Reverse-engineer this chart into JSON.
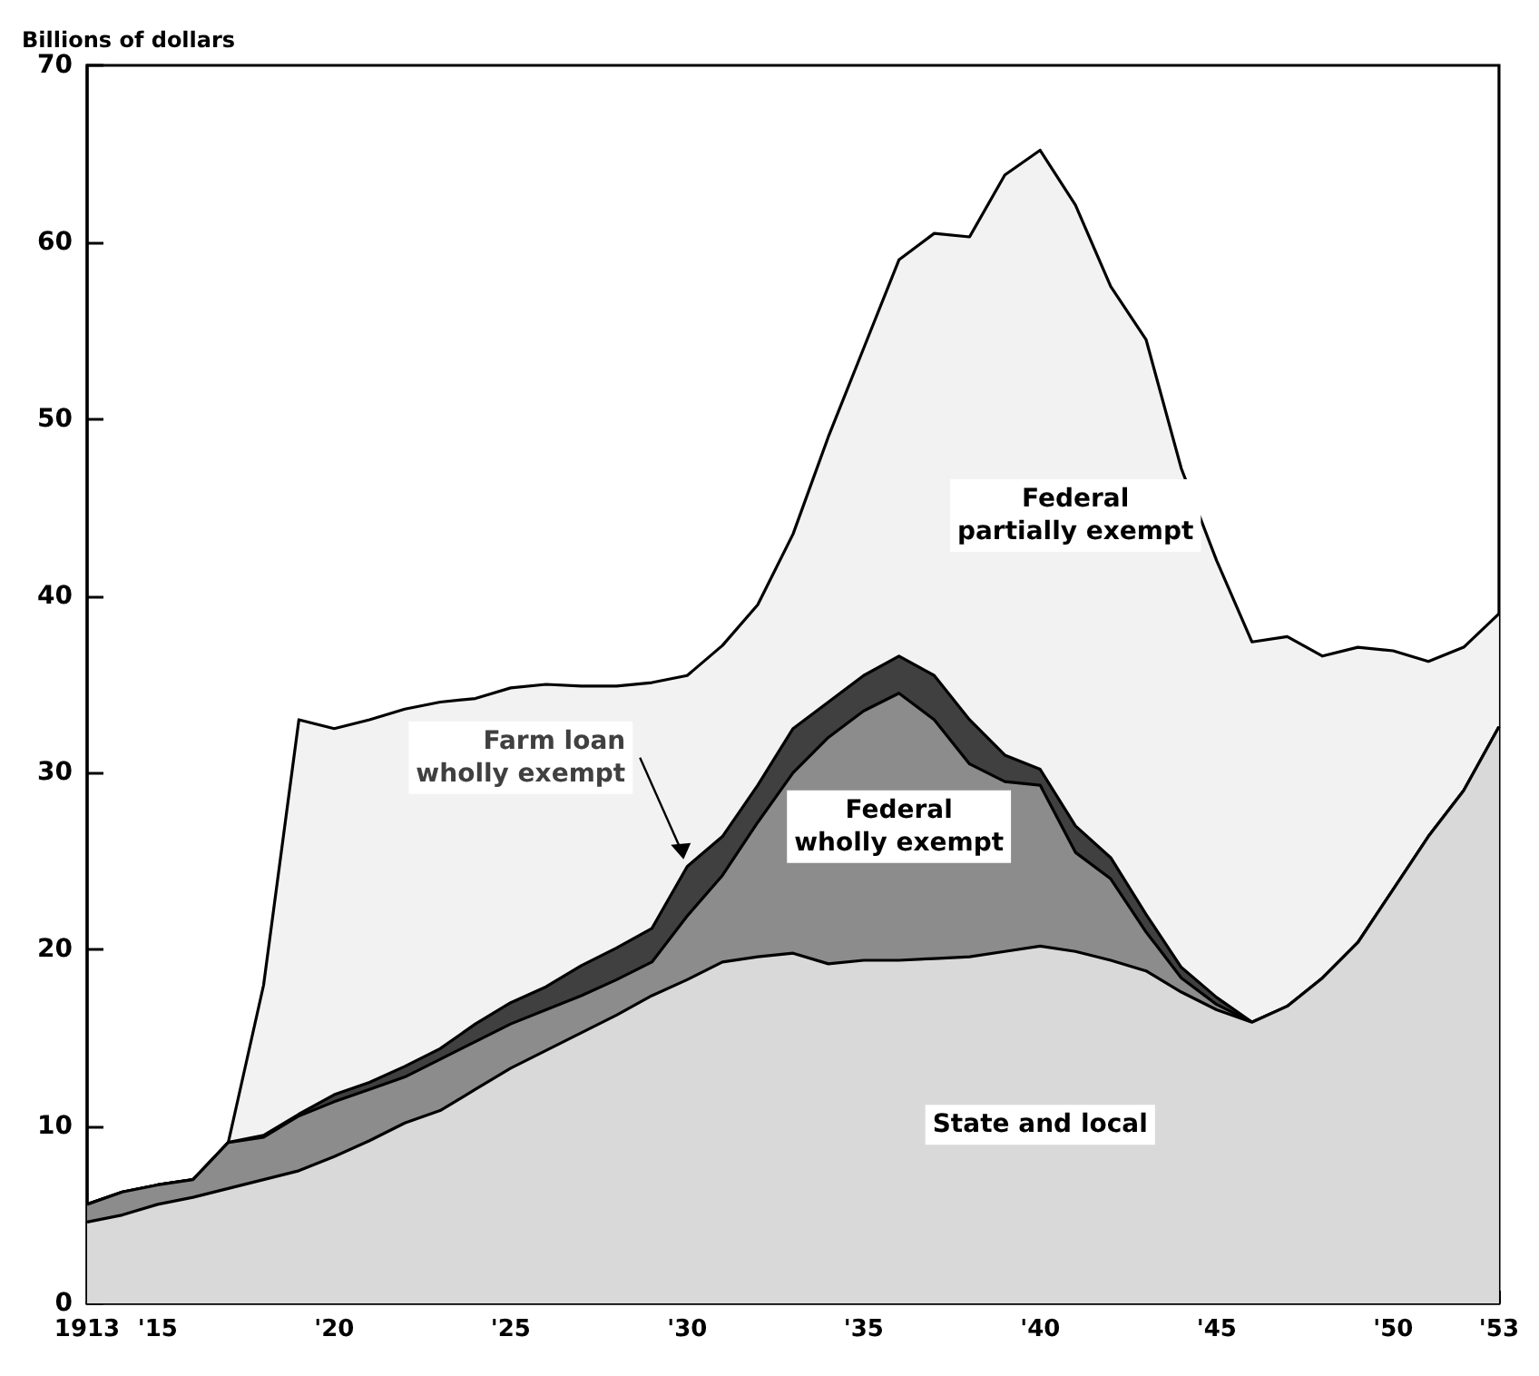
{
  "chart_data": {
    "type": "area",
    "stacked": true,
    "ylabel": "Billions of dollars",
    "legend": false,
    "grid": false,
    "x": [
      1913,
      1914,
      1915,
      1916,
      1917,
      1918,
      1919,
      1920,
      1921,
      1922,
      1923,
      1924,
      1925,
      1926,
      1927,
      1928,
      1929,
      1930,
      1931,
      1932,
      1933,
      1934,
      1935,
      1936,
      1937,
      1938,
      1939,
      1940,
      1941,
      1942,
      1943,
      1944,
      1945,
      1946,
      1947,
      1948,
      1949,
      1950,
      1951,
      1952,
      1953
    ],
    "series": [
      {
        "name": "State and local",
        "color": "#d9d9d9",
        "values": [
          4.6,
          5.0,
          5.6,
          6.0,
          6.5,
          7.0,
          7.5,
          8.3,
          9.2,
          10.2,
          10.9,
          12.1,
          13.3,
          14.3,
          15.3,
          16.3,
          17.4,
          18.3,
          19.3,
          19.6,
          19.8,
          19.2,
          19.4,
          19.4,
          19.5,
          19.6,
          19.9,
          20.2,
          19.9,
          19.4,
          18.8,
          17.6,
          16.6,
          15.9,
          16.8,
          18.4,
          20.4,
          23.4,
          26.4,
          29.0,
          32.6
        ]
      },
      {
        "name": "Federal\nwholly exempt",
        "color": "#8c8c8c",
        "values": [
          1.0,
          1.3,
          1.1,
          1.0,
          2.6,
          2.4,
          3.1,
          3.1,
          2.9,
          2.6,
          2.9,
          2.7,
          2.5,
          2.3,
          2.1,
          2.0,
          1.9,
          3.6,
          4.9,
          7.6,
          10.2,
          12.8,
          14.1,
          15.1,
          13.5,
          10.9,
          9.6,
          9.1,
          5.6,
          4.6,
          2.2,
          0.8,
          0.3,
          0,
          0,
          0,
          0,
          0,
          0,
          0,
          0
        ]
      },
      {
        "name": "Farm loan\nwholly exempt",
        "color": "#404040",
        "values": [
          0,
          0,
          0,
          0,
          0,
          0.1,
          0.1,
          0.4,
          0.4,
          0.6,
          0.6,
          1.0,
          1.2,
          1.3,
          1.7,
          1.8,
          1.9,
          2.8,
          2.2,
          2.1,
          2.5,
          2.0,
          2.0,
          2.1,
          2.5,
          2.5,
          1.5,
          0.9,
          1.5,
          1.2,
          1.0,
          0.6,
          0.4,
          0,
          0,
          0,
          0,
          0,
          0,
          0,
          0
        ]
      },
      {
        "name": "Federal\npartially exempt",
        "color": "#f2f2f2",
        "values": [
          0,
          0,
          0,
          0,
          0,
          8.5,
          22.3,
          20.7,
          20.5,
          20.2,
          19.6,
          18.4,
          17.8,
          17.1,
          15.8,
          14.8,
          13.9,
          10.8,
          10.8,
          10.2,
          11.0,
          15.0,
          18.5,
          22.4,
          25.0,
          27.3,
          32.8,
          35.0,
          35.1,
          32.3,
          32.5,
          28.2,
          24.7,
          21.5,
          20.9,
          18.2,
          16.7,
          13.5,
          9.9,
          8.1,
          6.4
        ]
      }
    ],
    "xlim": [
      1913,
      1953
    ],
    "xticks": [
      {
        "value": 1913,
        "label": "1913"
      },
      {
        "value": 1914,
        "label": null
      },
      {
        "value": 1915,
        "label": "'15"
      },
      {
        "value": 1916,
        "label": null
      },
      {
        "value": 1917,
        "label": null
      },
      {
        "value": 1918,
        "label": null
      },
      {
        "value": 1919,
        "label": null
      },
      {
        "value": 1920,
        "label": "'20"
      },
      {
        "value": 1921,
        "label": null
      },
      {
        "value": 1922,
        "label": null
      },
      {
        "value": 1923,
        "label": null
      },
      {
        "value": 1924,
        "label": null
      },
      {
        "value": 1925,
        "label": "'25"
      },
      {
        "value": 1926,
        "label": null
      },
      {
        "value": 1927,
        "label": null
      },
      {
        "value": 1928,
        "label": null
      },
      {
        "value": 1929,
        "label": null
      },
      {
        "value": 1930,
        "label": "'30"
      },
      {
        "value": 1931,
        "label": null
      },
      {
        "value": 1932,
        "label": null
      },
      {
        "value": 1933,
        "label": null
      },
      {
        "value": 1934,
        "label": null
      },
      {
        "value": 1935,
        "label": "'35"
      },
      {
        "value": 1936,
        "label": null
      },
      {
        "value": 1937,
        "label": null
      },
      {
        "value": 1938,
        "label": null
      },
      {
        "value": 1939,
        "label": null
      },
      {
        "value": 1940,
        "label": "'40"
      },
      {
        "value": 1941,
        "label": null
      },
      {
        "value": 1942,
        "label": null
      },
      {
        "value": 1943,
        "label": null
      },
      {
        "value": 1944,
        "label": null
      },
      {
        "value": 1945,
        "label": "'45"
      },
      {
        "value": 1946,
        "label": null
      },
      {
        "value": 1947,
        "label": null
      },
      {
        "value": 1948,
        "label": null
      },
      {
        "value": 1949,
        "label": null
      },
      {
        "value": 1950,
        "label": "'50"
      },
      {
        "value": 1951,
        "label": null
      },
      {
        "value": 1952,
        "label": null
      },
      {
        "value": 1953,
        "label": "'53"
      }
    ],
    "ylim": [
      0,
      70
    ],
    "yticks": [
      0,
      10,
      20,
      30,
      40,
      50,
      60,
      70
    ]
  }
}
